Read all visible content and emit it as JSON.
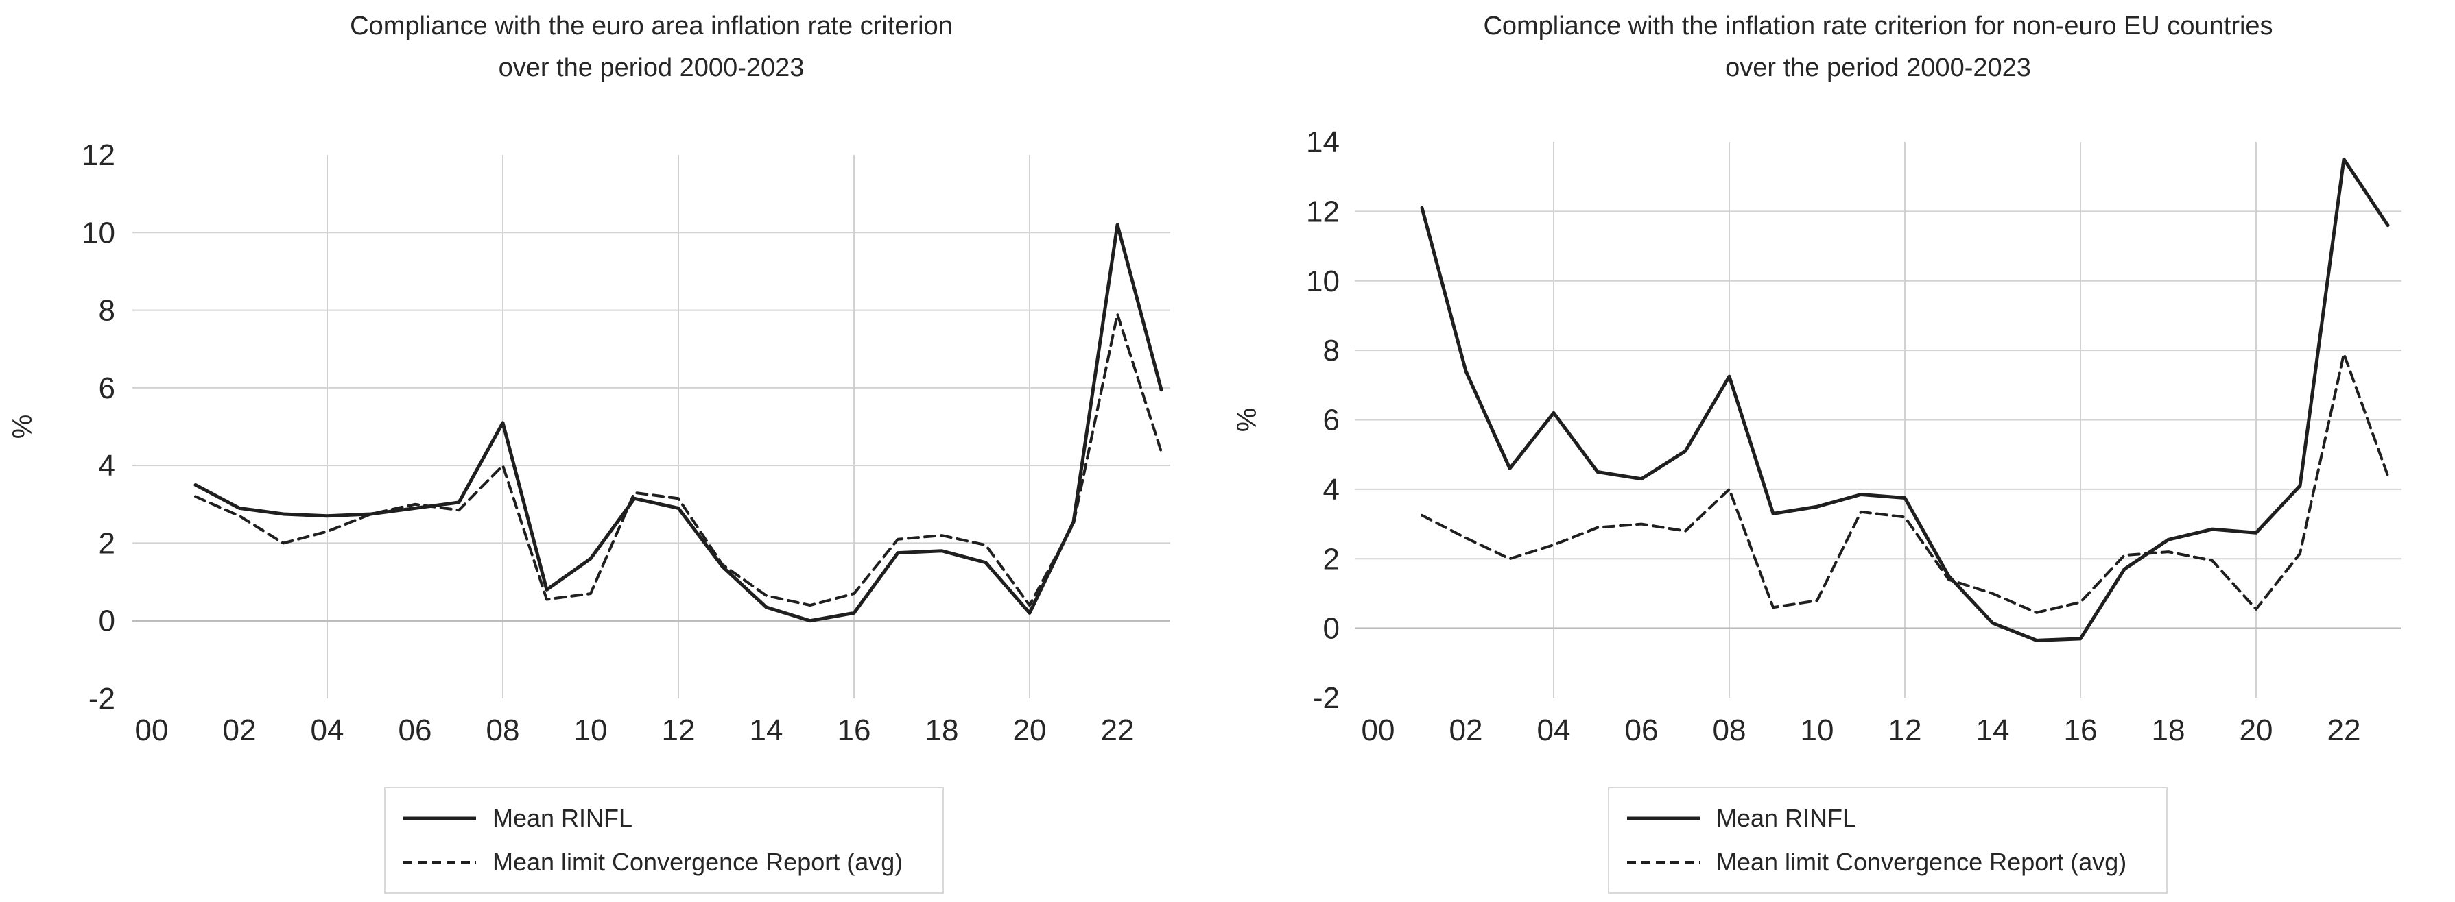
{
  "colors": {
    "background": "#ffffff",
    "series_line": "#1f1f1f",
    "gridline": "#d2d2d2",
    "zero_axis": "#bdbdbd",
    "text": "#262626",
    "legend_border": "#d9d9d9"
  },
  "chart_data": [
    {
      "type": "line",
      "title_line1": "Compliance with the euro area inflation rate criterion",
      "title_line2": "over the period 2000-2023",
      "ylabel": "%",
      "ylim": [
        -2,
        12
      ],
      "ytick_labels": [
        "12",
        "10",
        "8",
        "6",
        "4",
        "2",
        "0",
        "-2"
      ],
      "xtick_labels": [
        "00",
        "02",
        "04",
        "06",
        "08",
        "10",
        "12",
        "14",
        "16",
        "18",
        "20",
        "22"
      ],
      "xtick_years": [
        2000,
        2002,
        2004,
        2006,
        2008,
        2010,
        2012,
        2014,
        2016,
        2018,
        2020,
        2022
      ],
      "v_gridline_years": [
        2004,
        2008,
        2012,
        2016,
        2020
      ],
      "grid": "horizontal-and-vertical",
      "legend_position": "bottom",
      "x_years": [
        2001,
        2002,
        2003,
        2004,
        2005,
        2006,
        2007,
        2008,
        2009,
        2010,
        2011,
        2012,
        2013,
        2014,
        2015,
        2016,
        2017,
        2018,
        2019,
        2020,
        2021,
        2022,
        2023
      ],
      "series": [
        {
          "name": "Mean RINFL",
          "style": "solid",
          "values": [
            3.5,
            2.9,
            2.75,
            2.7,
            2.75,
            2.9,
            3.05,
            5.1,
            0.8,
            1.6,
            3.15,
            2.9,
            1.4,
            0.35,
            0.0,
            0.2,
            1.75,
            1.8,
            1.5,
            0.2,
            2.55,
            10.2,
            5.95
          ]
        },
        {
          "name": "Mean limit Convergence Report (avg)",
          "style": "dashed",
          "values": [
            3.2,
            2.7,
            2.0,
            2.3,
            2.75,
            3.0,
            2.85,
            4.0,
            0.55,
            0.7,
            3.3,
            3.15,
            1.45,
            0.65,
            0.4,
            0.7,
            2.1,
            2.2,
            1.95,
            0.4,
            2.5,
            7.9,
            4.35
          ]
        }
      ]
    },
    {
      "type": "line",
      "title_line1": "Compliance with the inflation rate criterion for non-euro EU countries",
      "title_line2": "over the period 2000-2023",
      "ylabel": "%",
      "ylim": [
        -2,
        14
      ],
      "ytick_labels": [
        "14",
        "12",
        "10",
        "8",
        "6",
        "4",
        "2",
        "0",
        "-2"
      ],
      "xtick_labels": [
        "00",
        "02",
        "04",
        "06",
        "08",
        "10",
        "12",
        "14",
        "16",
        "18",
        "20",
        "22"
      ],
      "xtick_years": [
        2000,
        2002,
        2004,
        2006,
        2008,
        2010,
        2012,
        2014,
        2016,
        2018,
        2020,
        2022
      ],
      "v_gridline_years": [
        2004,
        2008,
        2012,
        2016,
        2020
      ],
      "grid": "horizontal-and-vertical",
      "legend_position": "bottom",
      "x_years": [
        2001,
        2002,
        2003,
        2004,
        2005,
        2006,
        2007,
        2008,
        2009,
        2010,
        2011,
        2012,
        2013,
        2014,
        2015,
        2016,
        2017,
        2018,
        2019,
        2020,
        2021,
        2022,
        2023
      ],
      "series": [
        {
          "name": "Mean RINFL",
          "style": "solid",
          "values": [
            12.1,
            7.4,
            4.6,
            6.2,
            4.5,
            4.3,
            5.1,
            7.25,
            3.3,
            3.5,
            3.85,
            3.75,
            1.5,
            0.15,
            -0.35,
            -0.3,
            1.7,
            2.55,
            2.85,
            2.75,
            4.1,
            13.5,
            11.6
          ]
        },
        {
          "name": "Mean limit Convergence Report (avg)",
          "style": "dashed",
          "values": [
            3.25,
            2.6,
            2.0,
            2.4,
            2.9,
            3.0,
            2.8,
            4.0,
            0.6,
            0.8,
            3.35,
            3.2,
            1.4,
            1.0,
            0.45,
            0.75,
            2.1,
            2.2,
            1.95,
            0.55,
            2.15,
            7.9,
            4.4
          ]
        }
      ]
    }
  ]
}
